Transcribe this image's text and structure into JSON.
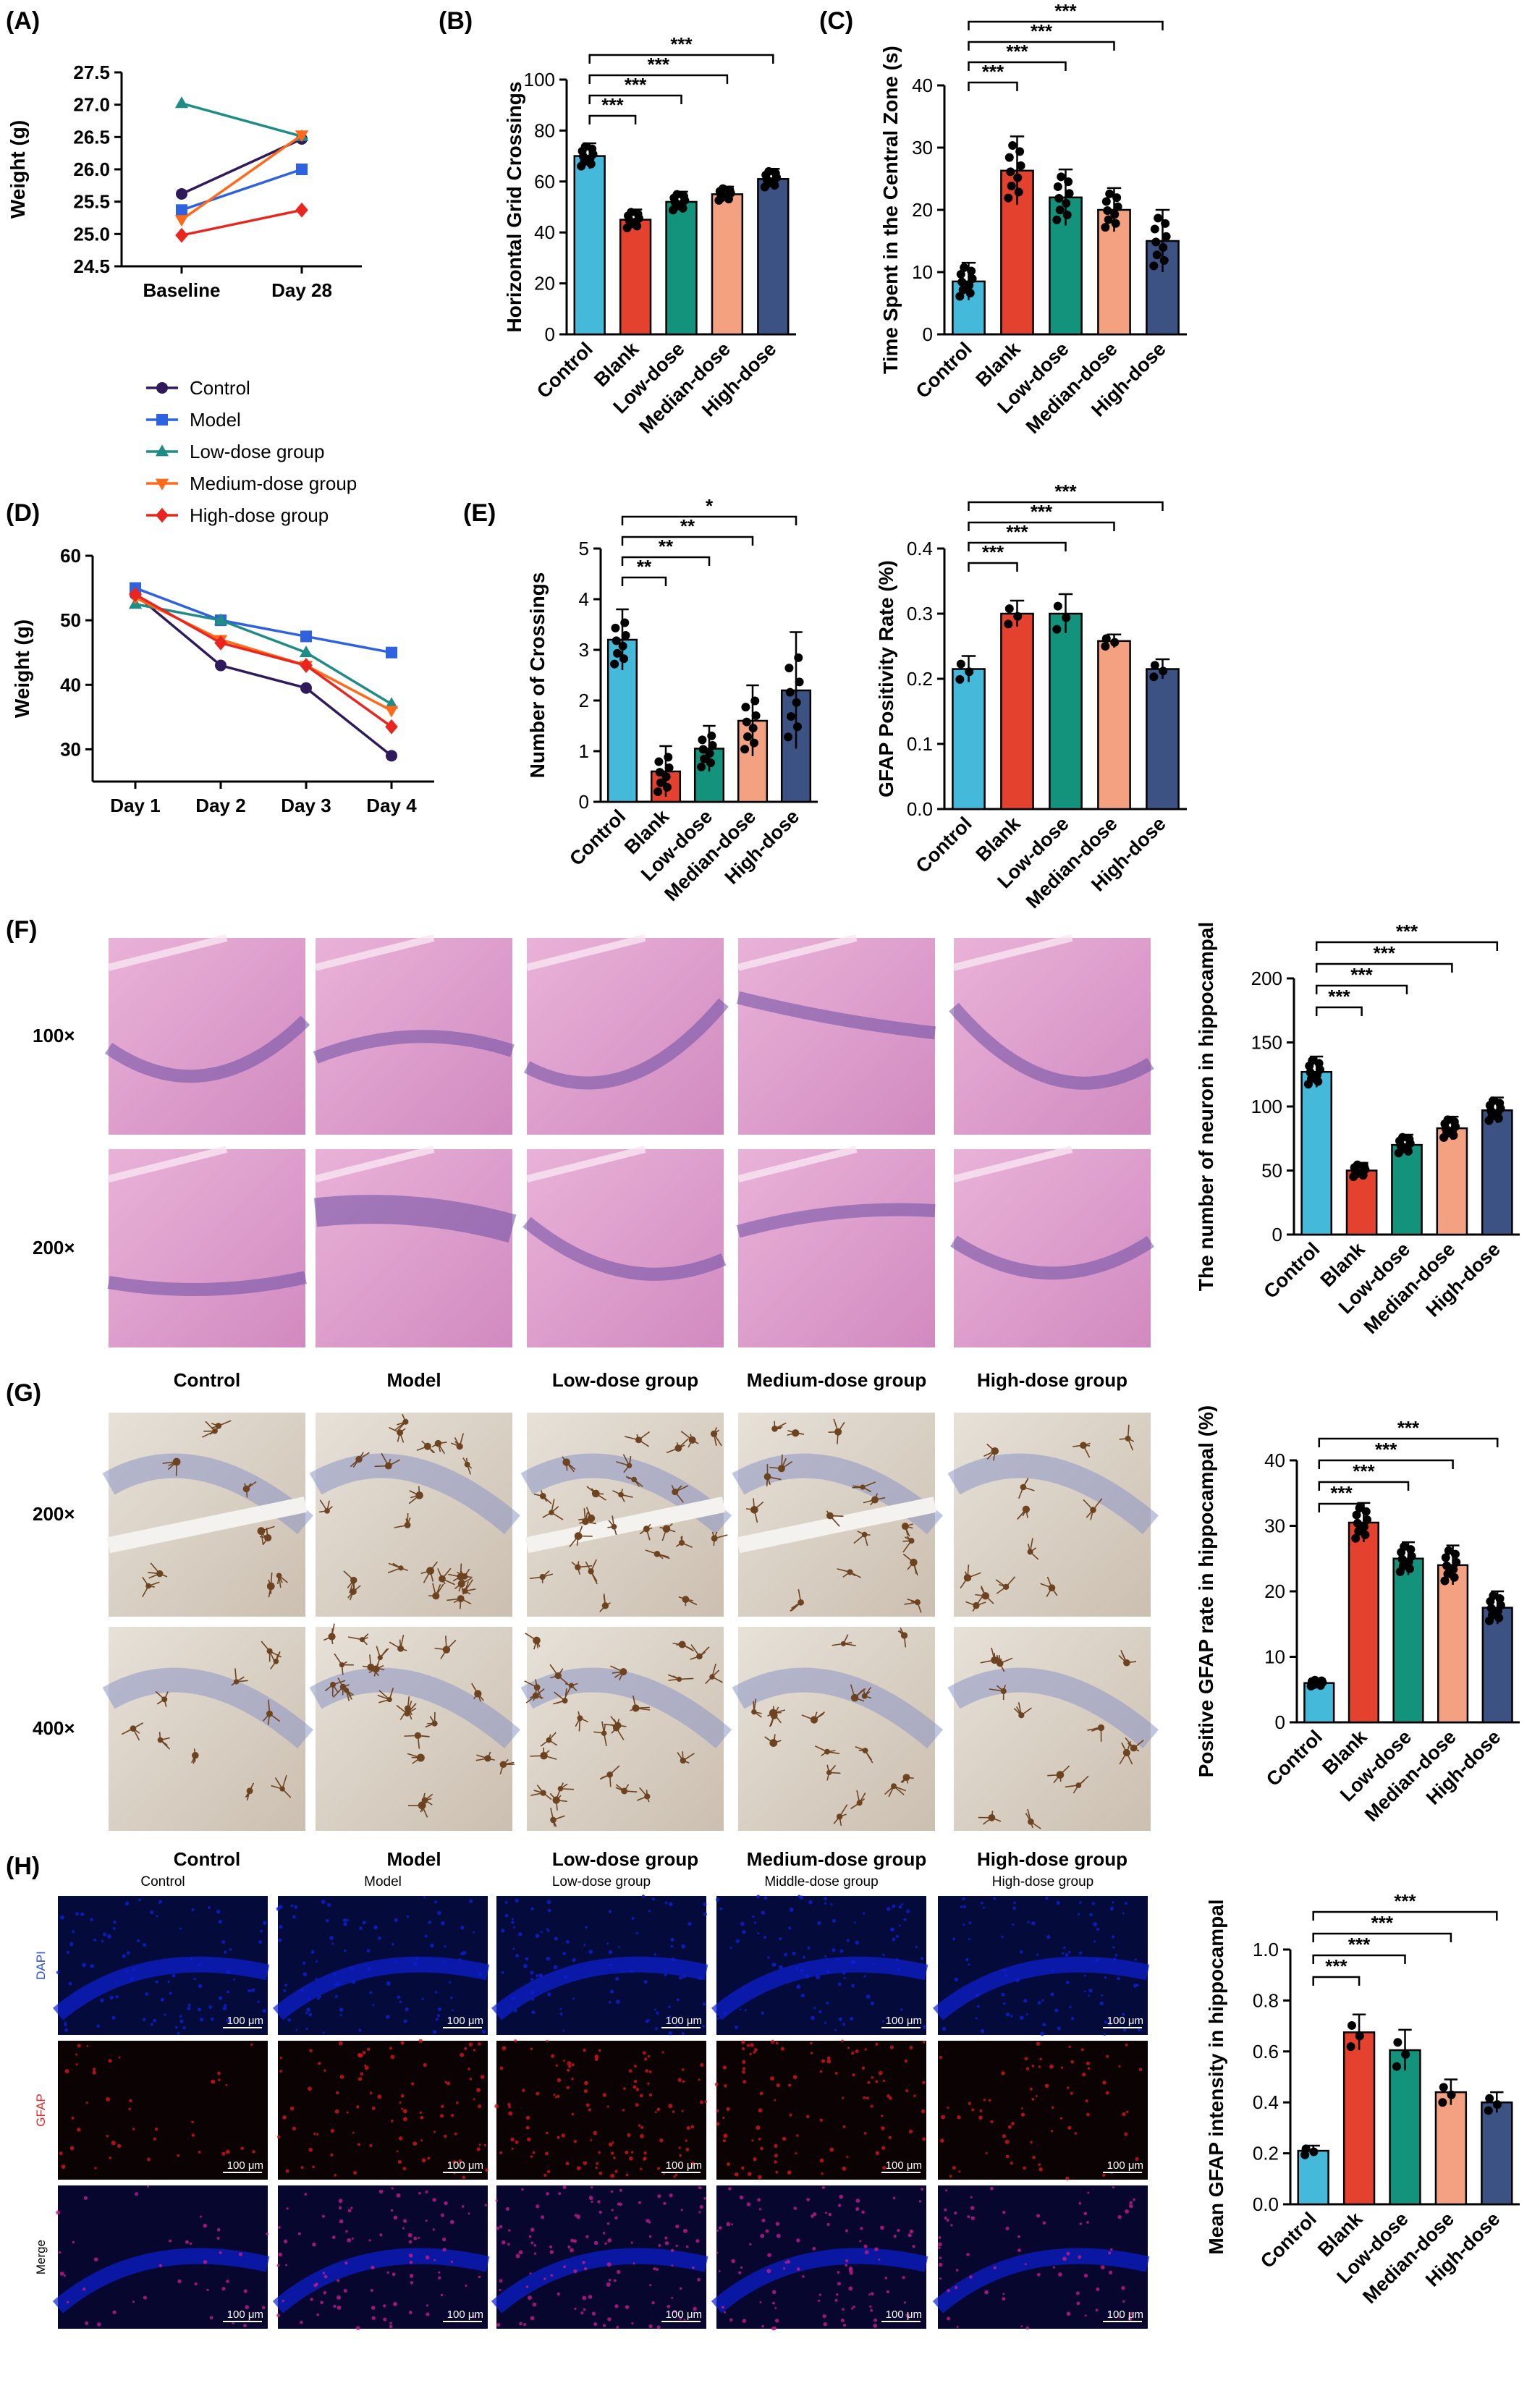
{
  "colors": {
    "control": "#45b9d9",
    "blank": "#e5412f",
    "low": "#13937c",
    "median": "#f3a181",
    "high": "#3b5282",
    "line_control": "#2f1a5c",
    "line_model": "#2f62e0",
    "line_low": "#1f8c86",
    "line_medium": "#ff6a1a",
    "line_high": "#e8261f",
    "dapi": "#0d1fd6",
    "gfap": "#d8151b",
    "he_pink": "#d98fc0",
    "he_purple": "#6b4fa4",
    "ihc_bg": "#ddd4c8",
    "ihc_brown": "#6e4320",
    "ihc_blue": "#8d96c7"
  },
  "panels": {
    "A": "(A)",
    "B": "(B)",
    "C": "(C)",
    "D": "(D)",
    "E": "(E)",
    "F": "(F)",
    "G": "(G)",
    "H": "(H)"
  },
  "line_legend": {
    "items": [
      "Control",
      "Model",
      "Low-dose group",
      "Medium-dose group",
      "High-dose group"
    ],
    "markers": [
      "circle",
      "square",
      "triangle-up",
      "triangle-down",
      "diamond"
    ]
  },
  "micrographs": {
    "F": {
      "rows": [
        "100×",
        "200×"
      ],
      "columns": [
        "Control",
        "Model",
        "Low-dose group",
        "Medium-dose group",
        "High-dose group"
      ]
    },
    "G": {
      "rows": [
        "200×",
        "400×"
      ],
      "columns": [
        "Control",
        "Model",
        "Low-dose group",
        "Medium-dose group",
        "High-dose group"
      ]
    },
    "H": {
      "rows": [
        "DAPI",
        "GFAP",
        "Merge"
      ],
      "columns": [
        "Control",
        "Model",
        "Low-dose group",
        "Middle-dose group",
        "High-dose group"
      ],
      "scale_bar": "100 μm"
    }
  },
  "chart_data": [
    {
      "id": "A",
      "type": "line",
      "categories": [
        "Baseline",
        "Day 28"
      ],
      "ylabel": "Weight (g)",
      "ylim": [
        24.5,
        27.5
      ],
      "yticks": [
        "24.5",
        "25.0",
        "25.5",
        "26.0",
        "26.5",
        "27.0",
        "27.5"
      ],
      "series": [
        {
          "name": "Control",
          "values": [
            25.62,
            26.47
          ]
        },
        {
          "name": "Model",
          "values": [
            25.37,
            26.0
          ]
        },
        {
          "name": "Low-dose group",
          "values": [
            27.02,
            26.51
          ]
        },
        {
          "name": "Medium-dose group",
          "values": [
            25.22,
            26.53
          ]
        },
        {
          "name": "High-dose group",
          "values": [
            24.98,
            25.37
          ]
        }
      ]
    },
    {
      "id": "B",
      "type": "bar",
      "categories": [
        "Control",
        "Blank",
        "Low-dose",
        "Median-dose",
        "High-dose"
      ],
      "values": [
        70,
        45,
        52,
        55,
        61
      ],
      "errors": [
        5,
        4,
        4,
        3,
        4
      ],
      "ylabel": "Horizontal Grid Crossings",
      "ylim": [
        0,
        100
      ],
      "yticks": [
        "0",
        "20",
        "40",
        "60",
        "80",
        "100"
      ],
      "significance": [
        {
          "from": 0,
          "to": 1,
          "label": "***"
        },
        {
          "from": 0,
          "to": 2,
          "label": "***"
        },
        {
          "from": 0,
          "to": 3,
          "label": "***"
        },
        {
          "from": 0,
          "to": 4,
          "label": "***"
        }
      ]
    },
    {
      "id": "C",
      "type": "bar",
      "categories": [
        "Control",
        "Blank",
        "Low-dose",
        "Median-dose",
        "High-dose"
      ],
      "values": [
        8.5,
        26.3,
        22,
        20,
        15
      ],
      "errors": [
        3,
        5.5,
        4.5,
        3.5,
        5
      ],
      "ylabel": "Time Spent in the Central Zone (s)",
      "ylim": [
        0,
        40
      ],
      "yticks": [
        "0",
        "10",
        "20",
        "30",
        "40"
      ],
      "significance": [
        {
          "from": 0,
          "to": 1,
          "label": "***"
        },
        {
          "from": 0,
          "to": 2,
          "label": "***"
        },
        {
          "from": 0,
          "to": 3,
          "label": "***"
        },
        {
          "from": 0,
          "to": 4,
          "label": "***"
        }
      ]
    },
    {
      "id": "D",
      "type": "line",
      "categories": [
        "Day 1",
        "Day 2",
        "Day 3",
        "Day 4"
      ],
      "ylabel": "Weight (g)",
      "ylim": [
        25,
        60
      ],
      "yticks": [
        "30",
        "40",
        "50",
        "60"
      ],
      "series": [
        {
          "name": "Control",
          "values": [
            54,
            43,
            39.5,
            29
          ]
        },
        {
          "name": "Model",
          "values": [
            55,
            50,
            47.5,
            45
          ]
        },
        {
          "name": "Low-dose group",
          "values": [
            52.5,
            50,
            45,
            37
          ]
        },
        {
          "name": "Medium-dose group",
          "values": [
            53.5,
            47,
            43,
            36
          ]
        },
        {
          "name": "High-dose group",
          "values": [
            54,
            46.5,
            43,
            33.5
          ]
        }
      ]
    },
    {
      "id": "E",
      "type": "bar",
      "categories": [
        "Control",
        "Blank",
        "Low-dose",
        "Median-dose",
        "High-dose"
      ],
      "values": [
        3.2,
        0.6,
        1.05,
        1.6,
        2.2
      ],
      "errors": [
        0.6,
        0.5,
        0.45,
        0.7,
        1.15
      ],
      "ylabel": "Number of Crossings",
      "ylim": [
        0,
        5
      ],
      "yticks": [
        "0",
        "1",
        "2",
        "3",
        "4",
        "5"
      ],
      "significance": [
        {
          "from": 0,
          "to": 1,
          "label": "**"
        },
        {
          "from": 0,
          "to": 2,
          "label": "**"
        },
        {
          "from": 0,
          "to": 3,
          "label": "**"
        },
        {
          "from": 0,
          "to": 4,
          "label": "*"
        }
      ]
    },
    {
      "id": "E2",
      "type": "bar",
      "categories": [
        "Control",
        "Blank",
        "Low-dose",
        "Median-dose",
        "High-dose"
      ],
      "values": [
        0.215,
        0.3,
        0.3,
        0.258,
        0.215
      ],
      "errors": [
        0.02,
        0.02,
        0.03,
        0.01,
        0.015
      ],
      "ylabel": "GFAP Positivity Rate (%)",
      "ylim": [
        0,
        0.4
      ],
      "yticks": [
        "0.0",
        "0.1",
        "0.2",
        "0.3",
        "0.4"
      ],
      "significance": [
        {
          "from": 0,
          "to": 1,
          "label": "***"
        },
        {
          "from": 0,
          "to": 2,
          "label": "***"
        },
        {
          "from": 0,
          "to": 3,
          "label": "***"
        },
        {
          "from": 0,
          "to": 4,
          "label": "***"
        }
      ]
    },
    {
      "id": "F",
      "type": "bar",
      "categories": [
        "Control",
        "Blank",
        "Low-dose",
        "Median-dose",
        "High-dose"
      ],
      "values": [
        127,
        50,
        70,
        83,
        97
      ],
      "errors": [
        12,
        6,
        8,
        9,
        10
      ],
      "ylabel": "The number of neuron in hippocampal",
      "ylim": [
        0,
        200
      ],
      "yticks": [
        "0",
        "50",
        "100",
        "150",
        "200"
      ],
      "significance": [
        {
          "from": 0,
          "to": 1,
          "label": "***"
        },
        {
          "from": 0,
          "to": 2,
          "label": "***"
        },
        {
          "from": 0,
          "to": 3,
          "label": "***"
        },
        {
          "from": 0,
          "to": 4,
          "label": "***"
        }
      ]
    },
    {
      "id": "G",
      "type": "bar",
      "categories": [
        "Control",
        "Blank",
        "Low-dose",
        "Median-dose",
        "High-dose"
      ],
      "values": [
        6,
        30.5,
        25,
        24,
        17.5
      ],
      "errors": [
        0.6,
        3,
        2.5,
        3,
        2.5
      ],
      "ylabel": "Positive GFAP rate in hippocampal (%)",
      "ylim": [
        0,
        40
      ],
      "yticks": [
        "0",
        "10",
        "20",
        "30",
        "40"
      ],
      "significance": [
        {
          "from": 0,
          "to": 1,
          "label": "***"
        },
        {
          "from": 0,
          "to": 2,
          "label": "***"
        },
        {
          "from": 0,
          "to": 3,
          "label": "***"
        },
        {
          "from": 0,
          "to": 4,
          "label": "***"
        }
      ]
    },
    {
      "id": "H",
      "type": "bar",
      "categories": [
        "Control",
        "Blank",
        "Low-dose",
        "Median-dose",
        "High-dose"
      ],
      "values": [
        0.21,
        0.675,
        0.605,
        0.44,
        0.4
      ],
      "errors": [
        0.02,
        0.07,
        0.08,
        0.05,
        0.04
      ],
      "ylabel": "Mean GFAP intensity in hippocampal",
      "ylim": [
        0,
        1.0
      ],
      "yticks": [
        "0.0",
        "0.2",
        "0.4",
        "0.6",
        "0.8",
        "1.0"
      ],
      "significance": [
        {
          "from": 0,
          "to": 1,
          "label": "***"
        },
        {
          "from": 0,
          "to": 2,
          "label": "***"
        },
        {
          "from": 0,
          "to": 3,
          "label": "***"
        },
        {
          "from": 0,
          "to": 4,
          "label": "***"
        }
      ]
    }
  ]
}
